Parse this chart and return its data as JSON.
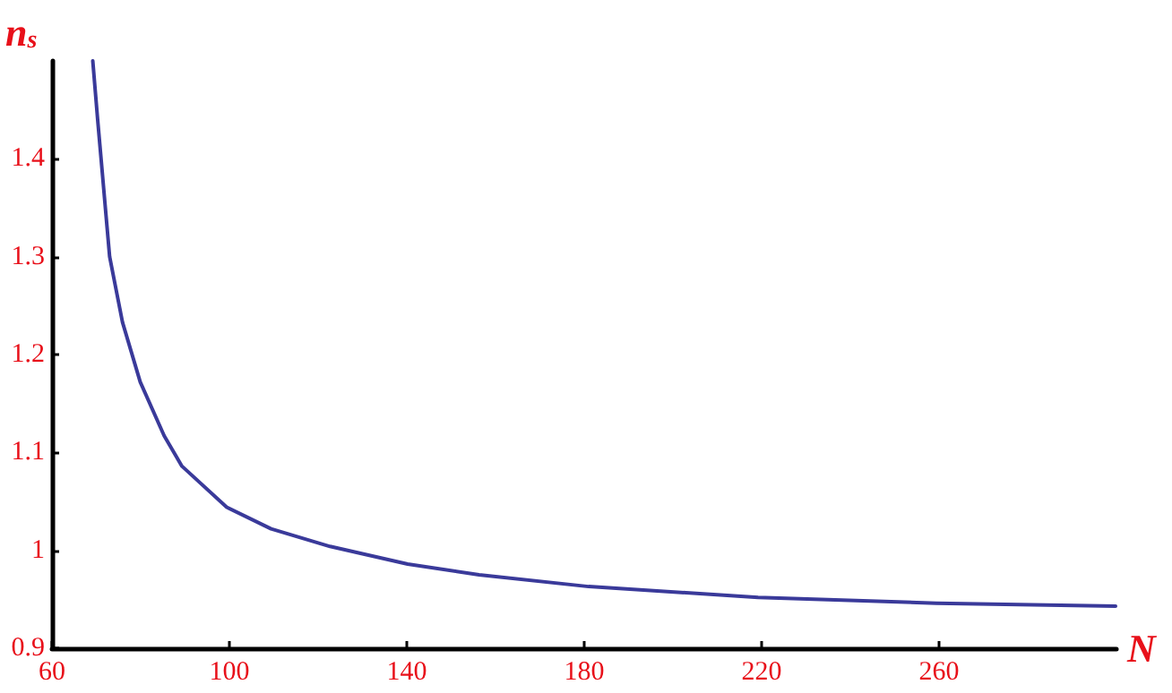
{
  "chart_data": {
    "type": "line",
    "xlabel": "N",
    "ylabel": "n$_{s}$",
    "x": [
      69.2,
      70.3,
      73.0,
      75.9,
      79.9,
      85.3,
      89.3,
      99.4,
      109.4,
      122.7,
      140.2,
      156.3,
      181,
      219.2,
      259.4,
      299.8
    ],
    "values": [
      1.5,
      1.44,
      1.3,
      1.233,
      1.172,
      1.117,
      1.086,
      1.044,
      1.022,
      1.004,
      0.986,
      0.975,
      0.963,
      0.952,
      0.946,
      0.943
    ],
    "color": "#3a3a9a",
    "xlim": [
      60,
      300
    ],
    "xticks": [
      60,
      100,
      140,
      180,
      220,
      260
    ],
    "ylim": [
      0.9,
      1.5
    ],
    "yticks": [
      0.9,
      1,
      1.1,
      1.2,
      1.3,
      1.4
    ],
    "grid": false,
    "marker": "none",
    "line_style": "solid"
  }
}
